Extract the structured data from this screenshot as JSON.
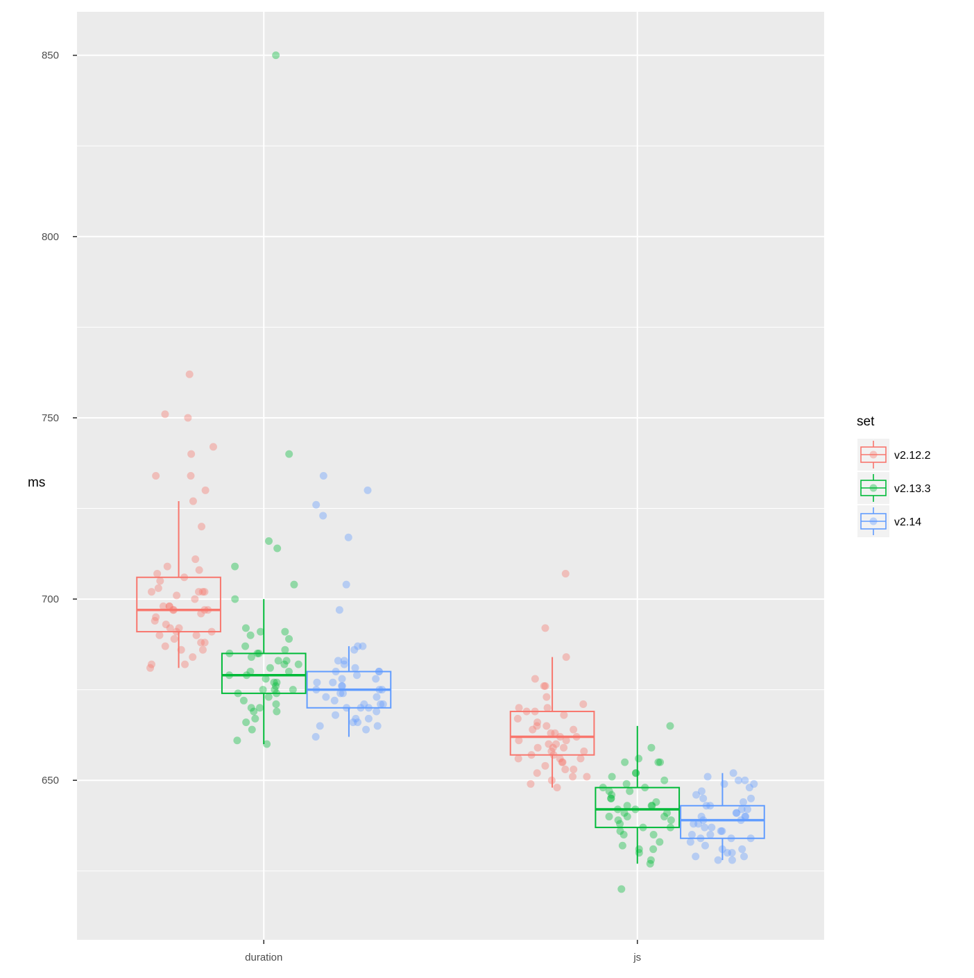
{
  "chart_data": {
    "type": "boxplot",
    "title": "",
    "xlabel": "",
    "ylabel": "ms",
    "categories": [
      "duration",
      "js"
    ],
    "yticks": [
      650,
      700,
      750,
      800,
      850
    ],
    "ylim": [
      606,
      862
    ],
    "grid": true,
    "panel_background": "#EBEBEB",
    "legend": {
      "title": "set",
      "placement": "right"
    },
    "series": [
      {
        "name": "v2.12.2",
        "color": "#F8766D",
        "boxes": [
          {
            "category": "duration",
            "whisker_low": 681,
            "q1": 691,
            "median": 697,
            "q3": 706,
            "whisker_high": 727,
            "points": [
              762,
              751,
              750,
              742,
              740,
              734,
              734,
              730,
              727,
              720,
              711,
              709,
              708,
              707,
              706,
              705,
              703,
              702,
              702,
              702,
              702,
              701,
              700,
              698,
              698,
              698,
              697,
              697,
              697,
              697,
              696,
              695,
              694,
              693,
              692,
              692,
              691,
              691,
              690,
              690,
              689,
              688,
              688,
              687,
              686,
              686,
              684,
              682,
              682,
              681
            ]
          },
          {
            "category": "js",
            "whisker_low": 648,
            "q1": 657,
            "median": 662,
            "q3": 669,
            "whisker_high": 684,
            "points": [
              707,
              692,
              684,
              678,
              676,
              676,
              673,
              671,
              670,
              670,
              669,
              669,
              668,
              667,
              666,
              665,
              665,
              664,
              664,
              663,
              663,
              662,
              662,
              661,
              661,
              660,
              660,
              659,
              659,
              659,
              658,
              658,
              657,
              657,
              656,
              656,
              656,
              655,
              655,
              654,
              653,
              653,
              652,
              651,
              651,
              650,
              649,
              648
            ]
          }
        ]
      },
      {
        "name": "v2.13.3",
        "color": "#00BA38",
        "boxes": [
          {
            "category": "duration",
            "whisker_low": 660,
            "q1": 674,
            "median": 679,
            "q3": 685,
            "whisker_high": 700,
            "points": [
              850,
              740,
              716,
              714,
              709,
              704,
              700,
              692,
              691,
              691,
              690,
              689,
              687,
              686,
              685,
              685,
              685,
              684,
              683,
              683,
              682,
              682,
              681,
              680,
              680,
              679,
              679,
              678,
              677,
              677,
              676,
              675,
              675,
              675,
              674,
              674,
              673,
              672,
              671,
              670,
              670,
              669,
              669,
              667,
              666,
              664,
              661,
              660
            ]
          },
          {
            "category": "js",
            "whisker_low": 627,
            "q1": 637,
            "median": 642,
            "q3": 648,
            "whisker_high": 665,
            "points": [
              665,
              659,
              656,
              655,
              655,
              655,
              652,
              652,
              651,
              650,
              649,
              648,
              648,
              647,
              647,
              646,
              645,
              645,
              644,
              643,
              643,
              643,
              642,
              642,
              641,
              641,
              640,
              640,
              640,
              639,
              639,
              638,
              637,
              637,
              636,
              635,
              635,
              633,
              632,
              631,
              631,
              630,
              628,
              627,
              620
            ]
          }
        ]
      },
      {
        "name": "v2.14",
        "color": "#619CFF",
        "boxes": [
          {
            "category": "duration",
            "whisker_low": 662,
            "q1": 670,
            "median": 675,
            "q3": 680,
            "whisker_high": 687,
            "points": [
              734,
              730,
              726,
              723,
              717,
              704,
              697,
              687,
              687,
              686,
              683,
              683,
              682,
              681,
              680,
              680,
              680,
              679,
              678,
              678,
              677,
              677,
              676,
              676,
              675,
              675,
              675,
              674,
              674,
              673,
              673,
              672,
              671,
              671,
              671,
              670,
              670,
              670,
              669,
              668,
              667,
              667,
              666,
              666,
              665,
              665,
              664,
              662
            ]
          },
          {
            "category": "js",
            "whisker_low": 628,
            "q1": 634,
            "median": 639,
            "q3": 643,
            "whisker_high": 652,
            "points": [
              652,
              651,
              650,
              650,
              649,
              649,
              648,
              647,
              646,
              645,
              645,
              644,
              643,
              643,
              642,
              642,
              641,
              641,
              640,
              640,
              640,
              639,
              639,
              638,
              638,
              637,
              637,
              636,
              636,
              635,
              635,
              634,
              634,
              634,
              633,
              632,
              631,
              631,
              630,
              630,
              629,
              629,
              628,
              628
            ]
          }
        ]
      }
    ]
  }
}
